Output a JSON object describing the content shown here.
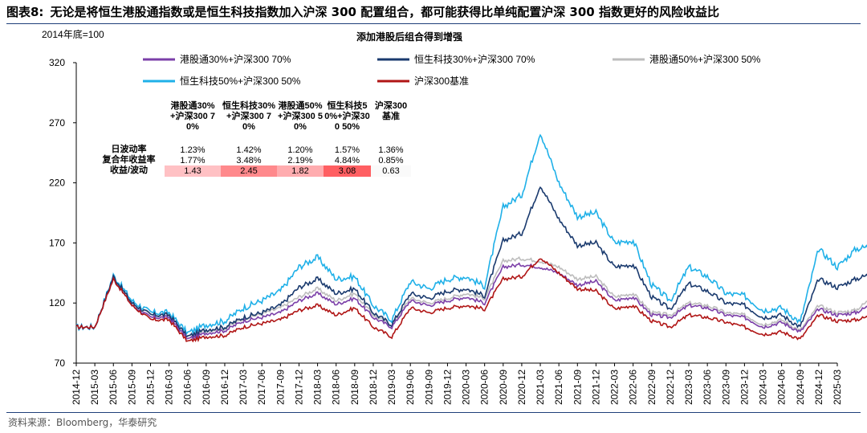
{
  "figure": {
    "label": "图表8:",
    "title": "无论是将恒生港股通指数或是恒生科技指数加入沪深 300 配置组合，都可能获得比单纯配置沪深 300 指数更好的风险收益比",
    "source": "资料来源：Bloomberg，华泰研究"
  },
  "chart_data": {
    "type": "line",
    "title": "添加港股后组合得到增强",
    "base_note": "2014年底=100",
    "ylim": [
      70,
      320
    ],
    "y_ticks": [
      70,
      120,
      170,
      220,
      270,
      320
    ],
    "x_ticks": [
      "2014-12",
      "2015-03",
      "2015-06",
      "2015-09",
      "2015-12",
      "2016-03",
      "2016-06",
      "2016-09",
      "2016-12",
      "2017-03",
      "2017-06",
      "2017-09",
      "2017-12",
      "2018-03",
      "2018-06",
      "2018-09",
      "2018-12",
      "2019-03",
      "2019-06",
      "2019-09",
      "2019-12",
      "2020-03",
      "2020-06",
      "2020-09",
      "2020-12",
      "2021-03",
      "2021-06",
      "2021-09",
      "2021-12",
      "2022-03",
      "2022-06",
      "2022-09",
      "2022-12",
      "2023-03",
      "2023-06",
      "2023-09",
      "2023-12",
      "2024-03",
      "2024-06",
      "2024-09",
      "2024-12",
      "2025-03"
    ],
    "legend_position": "top",
    "colors": {
      "hk30": "#7b3fa8",
      "hstech30": "#1a3a6e",
      "hk50": "#bdbdbd",
      "hstech50": "#1fb0e8",
      "csi300": "#b01515"
    },
    "series": [
      {
        "key": "hk30",
        "name": "港股通30%+沪深300 70%",
        "values": [
          100,
          100,
          140,
          118,
          108,
          108,
          90,
          95,
          97,
          105,
          108,
          112,
          122,
          128,
          119,
          124,
          108,
          100,
          122,
          118,
          122,
          125,
          120,
          150,
          152,
          150,
          145,
          135,
          138,
          122,
          125,
          110,
          108,
          118,
          116,
          110,
          108,
          100,
          104,
          96,
          115,
          110,
          112,
          120
        ]
      },
      {
        "key": "hstech30",
        "name": "恒生科技30%+沪深300 70%",
        "values": [
          100,
          100,
          142,
          120,
          110,
          110,
          92,
          98,
          100,
          108,
          112,
          118,
          133,
          140,
          128,
          132,
          112,
          102,
          128,
          124,
          130,
          132,
          126,
          172,
          178,
          218,
          190,
          168,
          170,
          150,
          152,
          125,
          115,
          136,
          130,
          120,
          118,
          108,
          110,
          100,
          140,
          133,
          140,
          145
        ]
      },
      {
        "key": "hk50",
        "name": "港股通50%+沪深300 50%",
        "values": [
          100,
          100,
          140,
          120,
          110,
          110,
          92,
          97,
          99,
          107,
          111,
          116,
          125,
          132,
          122,
          128,
          110,
          102,
          124,
          120,
          124,
          128,
          124,
          155,
          157,
          155,
          150,
          140,
          142,
          125,
          128,
          112,
          110,
          120,
          118,
          112,
          110,
          102,
          106,
          97,
          118,
          112,
          114,
          126
        ]
      },
      {
        "key": "hstech50",
        "name": "恒生科技50%+沪深300 50%",
        "values": [
          100,
          100,
          143,
          122,
          112,
          112,
          95,
          102,
          105,
          116,
          122,
          130,
          150,
          158,
          140,
          142,
          118,
          106,
          138,
          132,
          140,
          142,
          134,
          200,
          210,
          262,
          220,
          192,
          195,
          170,
          172,
          135,
          122,
          150,
          142,
          128,
          126,
          114,
          116,
          104,
          165,
          150,
          165,
          168
        ]
      },
      {
        "key": "csi300",
        "name": "沪深300基准",
        "values": [
          100,
          100,
          140,
          118,
          106,
          106,
          88,
          92,
          93,
          100,
          103,
          106,
          114,
          118,
          110,
          116,
          100,
          92,
          116,
          112,
          116,
          118,
          115,
          140,
          142,
          158,
          145,
          132,
          130,
          115,
          118,
          105,
          100,
          110,
          108,
          104,
          100,
          94,
          96,
          90,
          110,
          105,
          106,
          110
        ]
      }
    ],
    "table": {
      "headers": [
        "港股通30%+沪深300 70%",
        "恒生科技30%+沪深300 70%",
        "港股通50%+沪深300 50%",
        "恒生科技50%+沪深300 50%",
        "沪深300基准"
      ],
      "rows": [
        {
          "label": "日波动率",
          "values": [
            "1.23%",
            "1.42%",
            "1.20%",
            "1.57%",
            "1.36%"
          ]
        },
        {
          "label": "复合年收益率",
          "values": [
            "1.77%",
            "3.48%",
            "2.19%",
            "4.84%",
            "0.85%"
          ]
        },
        {
          "label": "收益/波动",
          "values": [
            "1.43",
            "2.45",
            "1.82",
            "3.08",
            "0.63"
          ],
          "heat": [
            0.3,
            0.7,
            0.45,
            1.0,
            0.0
          ]
        }
      ]
    }
  }
}
